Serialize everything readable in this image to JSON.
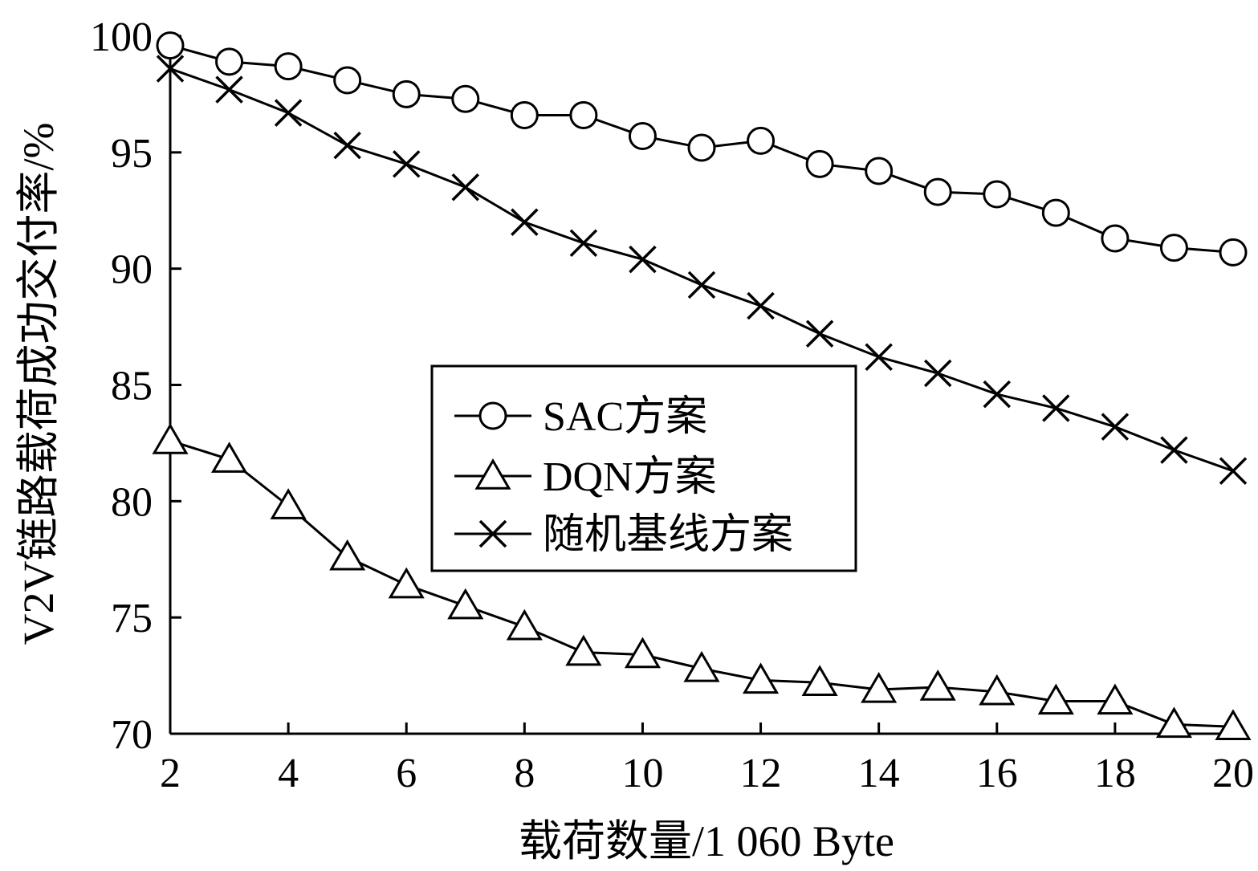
{
  "chart_data": {
    "type": "line",
    "xlabel": "载荷数量/1 060 Byte",
    "ylabel": "V2V链路载荷成功交付率/%",
    "xlim": [
      2,
      20
    ],
    "ylim": [
      70,
      100
    ],
    "xticks": [
      2,
      4,
      6,
      8,
      10,
      12,
      14,
      16,
      18,
      20
    ],
    "yticks": [
      70,
      75,
      80,
      85,
      90,
      95,
      100
    ],
    "xtick_labels": [
      "2",
      "4",
      "6",
      "8",
      "10",
      "12",
      "14",
      "16",
      "18",
      "20"
    ],
    "ytick_labels": [
      "70",
      "75",
      "80",
      "85",
      "90",
      "95",
      "100"
    ],
    "legend_position": "center",
    "grid": false,
    "x": [
      2,
      3,
      4,
      5,
      6,
      7,
      8,
      9,
      10,
      11,
      12,
      13,
      14,
      15,
      16,
      17,
      18,
      19,
      20
    ],
    "series": [
      {
        "name": "SAC方案",
        "marker": "circle",
        "values": [
          99.6,
          98.9,
          98.7,
          98.1,
          97.5,
          97.3,
          96.6,
          96.6,
          95.7,
          95.2,
          95.5,
          94.5,
          94.2,
          93.3,
          93.2,
          92.4,
          91.3,
          90.9,
          90.7
        ]
      },
      {
        "name": "DQN方案",
        "marker": "triangle",
        "values": [
          82.6,
          81.8,
          79.8,
          77.6,
          76.4,
          75.5,
          74.6,
          73.5,
          73.4,
          72.8,
          72.3,
          72.2,
          71.9,
          72.0,
          71.8,
          71.4,
          71.4,
          70.4,
          70.3
        ]
      },
      {
        "name": "随机基线方案",
        "marker": "x",
        "values": [
          98.6,
          97.7,
          96.7,
          95.3,
          94.5,
          93.5,
          92.0,
          91.1,
          90.4,
          89.3,
          88.4,
          87.2,
          86.2,
          85.5,
          84.6,
          84.0,
          83.2,
          82.2,
          81.3
        ]
      }
    ]
  }
}
